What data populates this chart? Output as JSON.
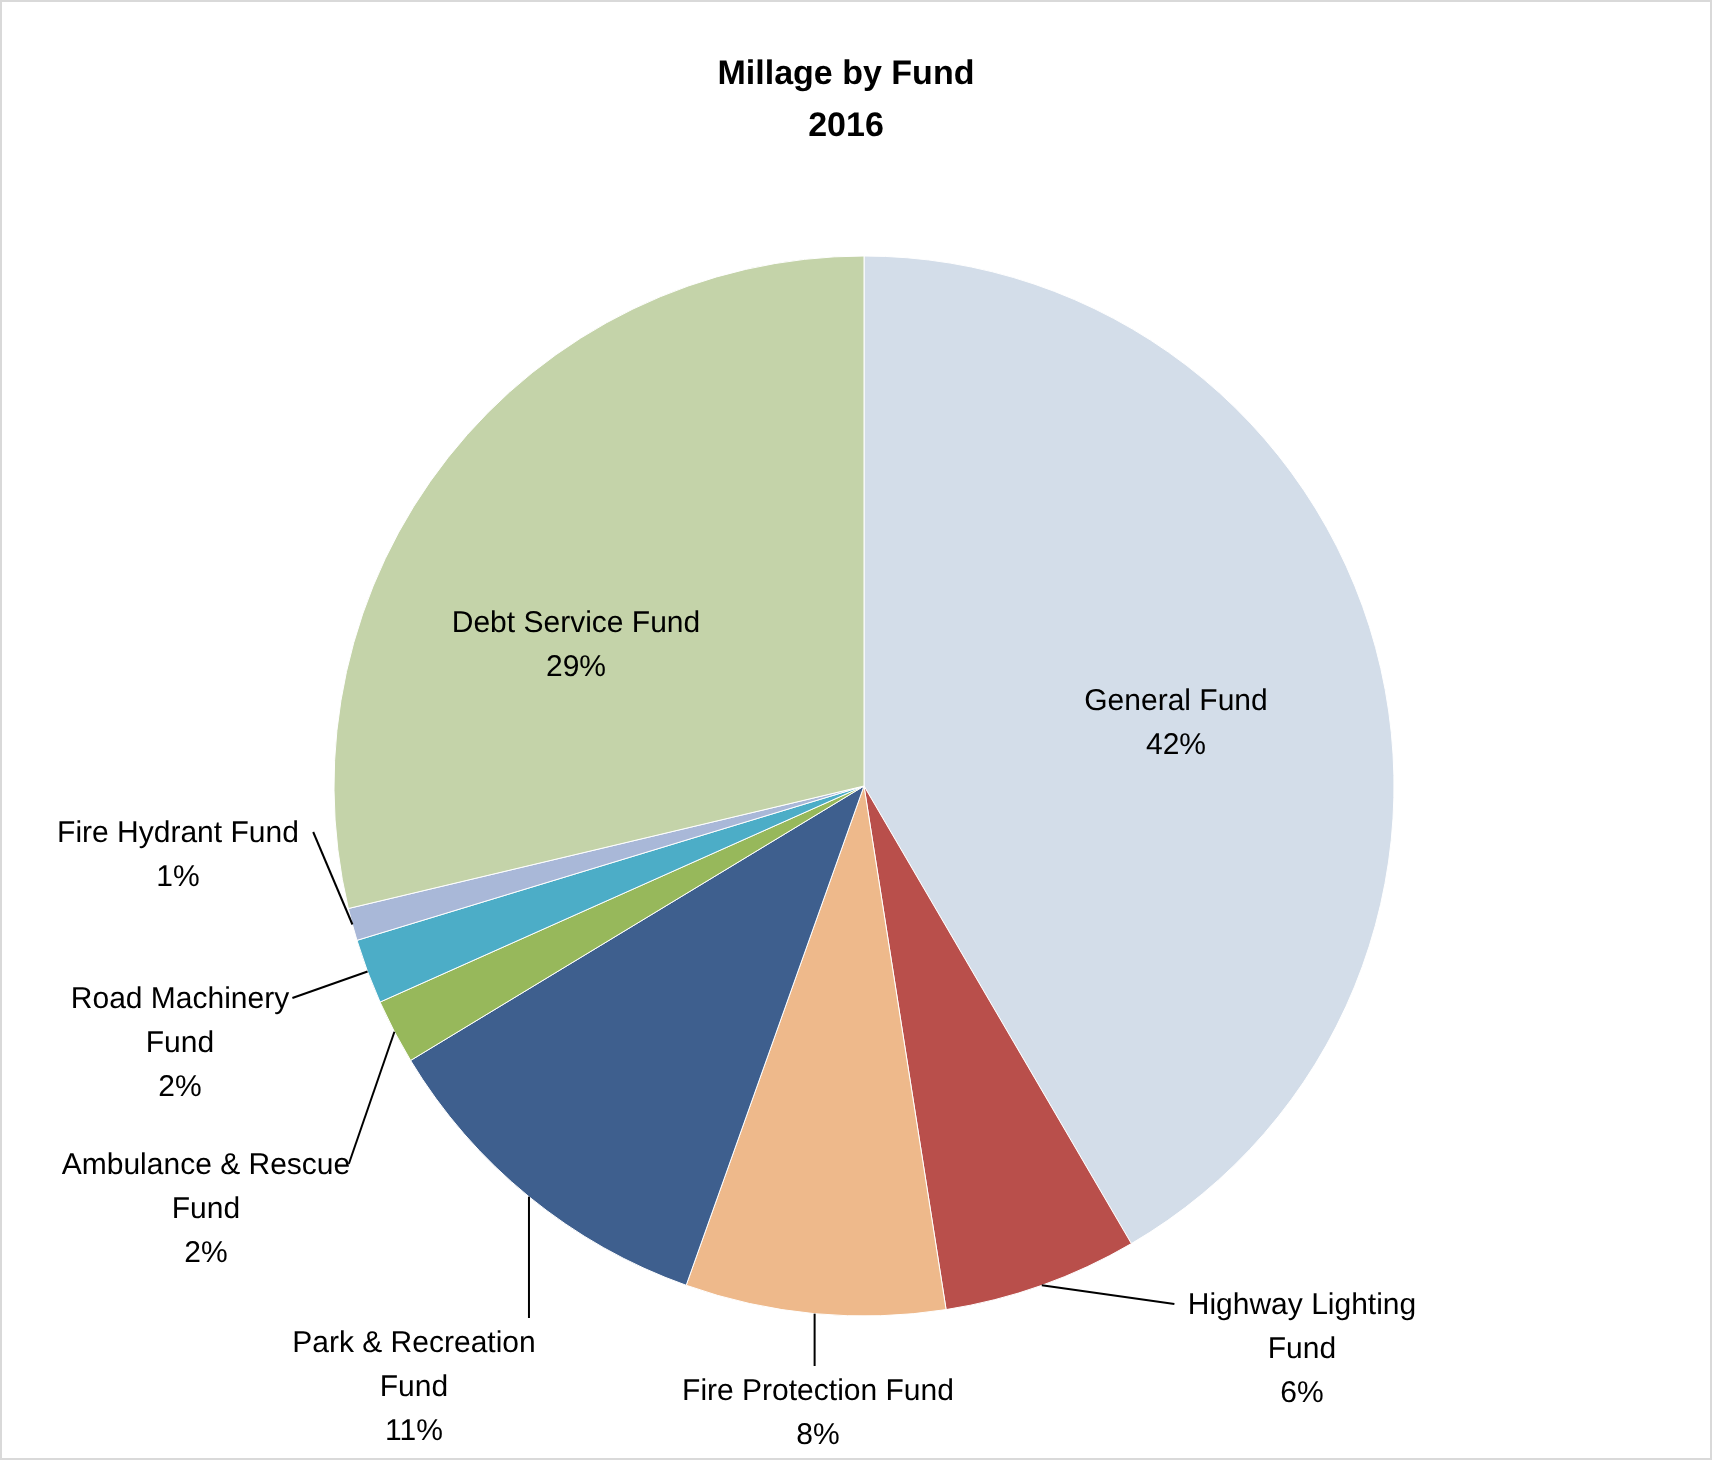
{
  "chart_data": {
    "type": "pie",
    "title": "Millage by Fund\n2016",
    "categories": [
      "General Fund",
      "Highway Lighting Fund",
      "Fire Protection Fund",
      "Park & Recreation Fund",
      "Ambulance & Rescue Fund",
      "Road Machinery Fund",
      "Fire Hydrant Fund",
      "Debt Service Fund"
    ],
    "values": [
      42,
      6,
      8,
      11,
      2,
      2,
      1,
      29
    ],
    "colors": [
      "#d3dde9",
      "#b94f4b",
      "#eeb98b",
      "#3e5f8e",
      "#97b85b",
      "#4cadc7",
      "#a9b8d8",
      "#c4d3a9"
    ],
    "value_labels": [
      "42%",
      "6%",
      "8%",
      "11%",
      "2%",
      "2%",
      "1%",
      "29%"
    ],
    "legend": false
  }
}
